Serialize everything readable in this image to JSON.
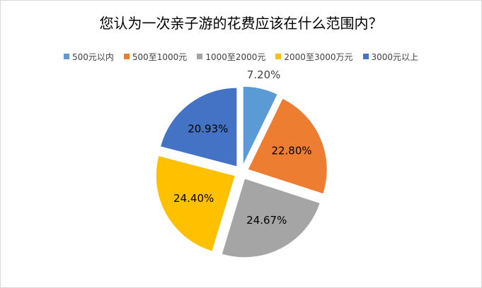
{
  "chart_data": {
    "type": "pie",
    "title": "您认为一次亲子游的花费应该在什么范围内？",
    "categories": [
      "500元以内",
      "500至1000元",
      "1000至2000元",
      "2000至3000万元",
      "3000元以上"
    ],
    "values": [
      7.2,
      22.8,
      24.67,
      24.4,
      20.93
    ],
    "labels": [
      "7.20%",
      "22.80%",
      "24.67%",
      "24.40%",
      "20.93%"
    ],
    "colors": [
      "#5b9bd5",
      "#ed7d31",
      "#a5a5a5",
      "#ffc000",
      "#4472c4"
    ],
    "legend_position": "top",
    "exploded": true
  }
}
